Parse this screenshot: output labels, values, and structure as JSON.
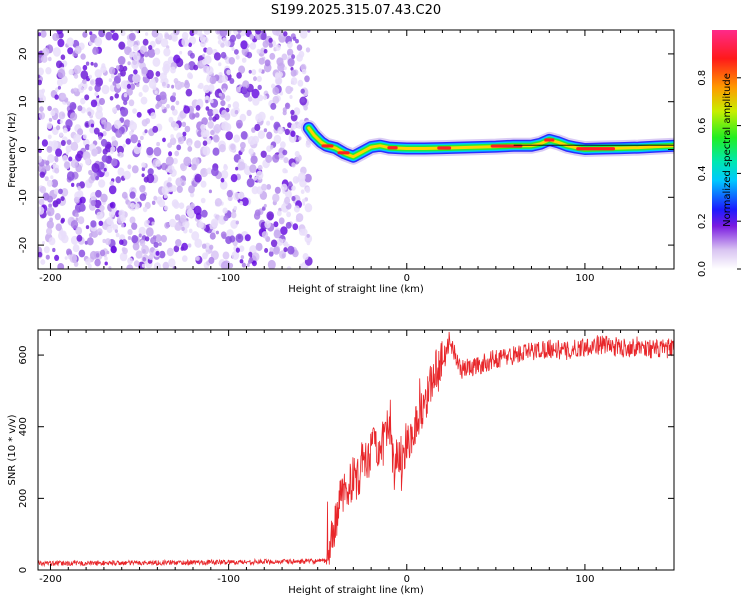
{
  "title": "S199.2025.315.07.43.C20",
  "chart_data": [
    {
      "type": "heatmap",
      "name": "spectrogram",
      "xlabel": "Height of straight line (km)",
      "ylabel": "Frequency (Hz)",
      "xlim": [
        -207,
        150
      ],
      "ylim": [
        -25,
        25
      ],
      "xticks": [
        -200,
        -100,
        0,
        100
      ],
      "yticks": [
        -20,
        -10,
        0,
        10,
        20
      ],
      "noise_region_x": [
        -207,
        -55
      ],
      "signal_track": {
        "x": [
          -55,
          -52,
          -48,
          -45,
          -40,
          -35,
          -30,
          -25,
          -20,
          -15,
          -10,
          -5,
          0,
          10,
          20,
          30,
          40,
          50,
          60,
          70,
          75,
          80,
          85,
          90,
          95,
          100,
          110,
          120,
          130,
          140,
          150
        ],
        "y": [
          4.5,
          3.0,
          1.5,
          0.8,
          0.3,
          -0.8,
          -1.5,
          -0.5,
          0.5,
          0.8,
          0.4,
          0.3,
          0.2,
          0.2,
          0.3,
          0.4,
          0.5,
          0.6,
          0.8,
          0.8,
          1.2,
          2.0,
          1.5,
          0.8,
          0.4,
          0.1,
          0.2,
          0.3,
          0.4,
          0.6,
          0.8
        ]
      },
      "colorbar": {
        "label": "Normalized spectral amplitude",
        "range": [
          0.0,
          1.0
        ],
        "ticks": [
          "0.0",
          "0.2",
          "0.4",
          "0.6",
          "0.8"
        ],
        "tick_values": [
          0.0,
          0.2,
          0.4,
          0.6,
          0.8
        ]
      }
    },
    {
      "type": "line",
      "name": "snr",
      "xlabel": "Height of straight line (km)",
      "ylabel": "SNR (10 * v/v)",
      "xlim": [
        -207,
        150
      ],
      "ylim": [
        0,
        670
      ],
      "xticks": [
        -200,
        -100,
        0,
        100
      ],
      "yticks": [
        0,
        200,
        400,
        600
      ],
      "color": "#e8262a",
      "series": {
        "x": [
          -207,
          -150,
          -100,
          -60,
          -45,
          -43,
          -40,
          -37,
          -33,
          -30,
          -27,
          -25,
          -22,
          -20,
          -17,
          -15,
          -12,
          -10,
          -7,
          -5,
          -3,
          0,
          3,
          6,
          10,
          15,
          20,
          25,
          30,
          40,
          50,
          60,
          70,
          80,
          90,
          100,
          110,
          120,
          130,
          140,
          150
        ],
        "y": [
          18,
          20,
          22,
          24,
          25,
          60,
          140,
          200,
          230,
          260,
          250,
          310,
          290,
          330,
          360,
          310,
          400,
          380,
          280,
          330,
          300,
          360,
          380,
          420,
          470,
          540,
          600,
          630,
          560,
          570,
          590,
          600,
          610,
          620,
          610,
          625,
          630,
          620,
          625,
          615,
          620
        ]
      }
    }
  ]
}
